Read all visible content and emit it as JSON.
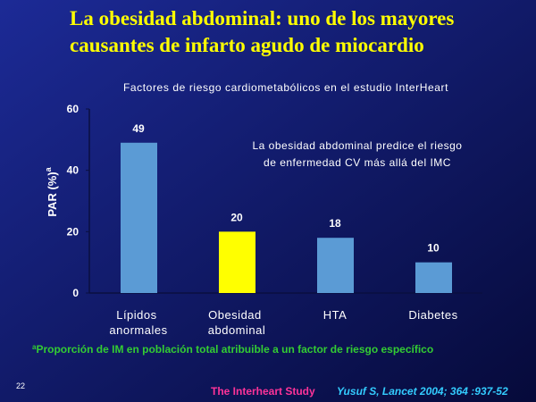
{
  "title_lines": [
    "La obesidad abdominal: uno de los mayores",
    "causantes de infarto agudo de miocardio"
  ],
  "chart_data": {
    "type": "bar",
    "title": "Factores de riesgo cardiometabólicos en el estudio InterHeart",
    "y_label": "PAR (%)",
    "y_label_superscript": "a",
    "categories": [
      "Lípidos anormales",
      "Obesidad abdominal",
      "HTA",
      "Diabetes"
    ],
    "values": [
      49,
      20,
      18,
      10
    ],
    "colors": [
      "#5b9bd5",
      "#ffff00",
      "#5b9bd5",
      "#5b9bd5"
    ],
    "ylim": [
      0,
      60
    ],
    "yticks": [
      0,
      20,
      40,
      60
    ],
    "grid": false,
    "annotation_lines": [
      "La obesidad abdominal predice el riesgo",
      "de enfermedad CV más allá del IMC"
    ]
  },
  "footnote_marker": "a",
  "footnote": "Proporción de IM en población total atribuible a un factor de riesgo específico",
  "slide_number": "22",
  "source": "The Interheart Study",
  "citation": "Yusuf S, Lancet 2004; 364 :937-52"
}
